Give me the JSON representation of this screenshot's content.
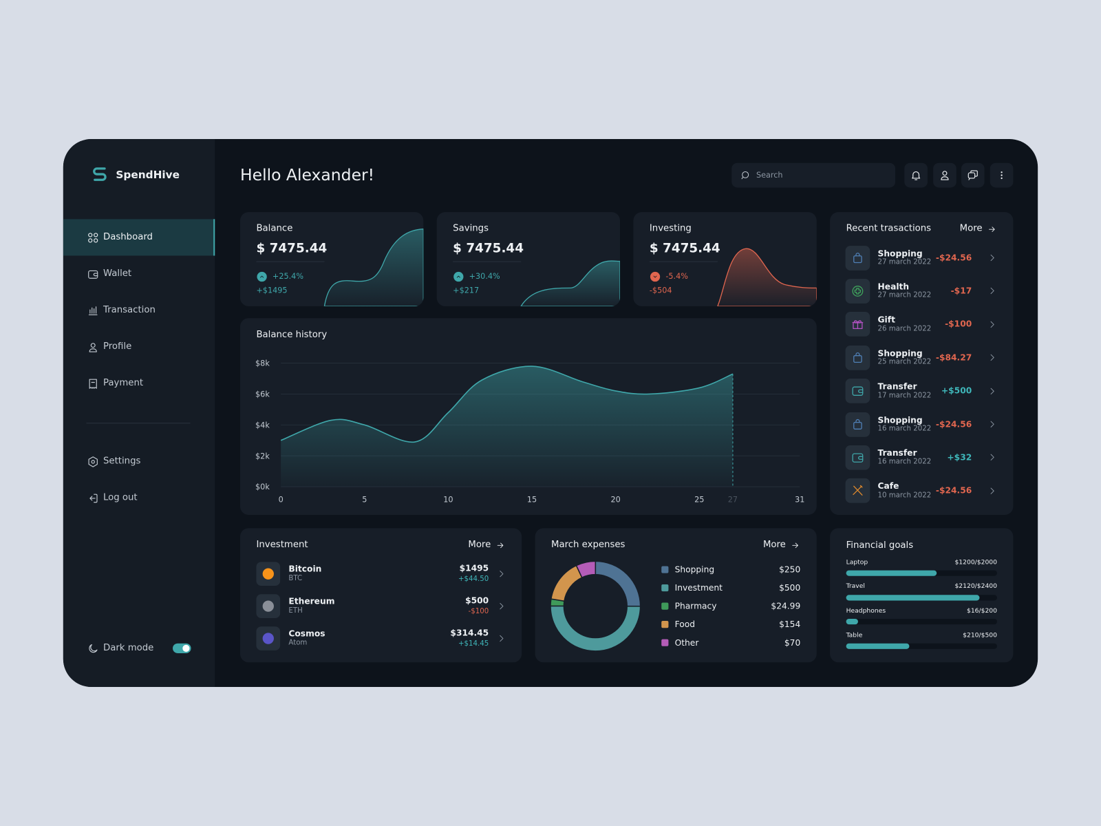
{
  "sidebar": {
    "brand": "SpendHive",
    "nav": [
      "Dashboard",
      "Wallet",
      "Transaction",
      "Profile",
      "Payment"
    ],
    "secondary_nav": [
      "Settings",
      "Log out"
    ],
    "dark_mode": {
      "label": "Dark mode",
      "on": true
    }
  },
  "header": {
    "greeting": "Hello Alexander!",
    "search_placeholder": "Search"
  },
  "summary_cards": [
    {
      "title": "Balance",
      "amount": "$ 7475.44",
      "change": "+25.4%",
      "delta": "+$1495",
      "color": "#3fa7aa"
    },
    {
      "title": "Savings",
      "amount": "$ 7475.44",
      "change": "+30.4%",
      "delta": "+$217",
      "color": "#3fa7aa"
    },
    {
      "title": "Investing",
      "amount": "$ 7475.44",
      "change": "-5.4%",
      "delta": "-$504",
      "color": "#e0664f"
    }
  ],
  "balance_history": {
    "title": "Balance history",
    "type": "area",
    "color": "#3fa7aa",
    "x": [
      0,
      3,
      5,
      8,
      10,
      12,
      15,
      18,
      20,
      22,
      25,
      27
    ],
    "values": [
      3000,
      4300,
      4000,
      2900,
      4800,
      6900,
      7800,
      6800,
      6200,
      6000,
      6400,
      7300
    ],
    "xlim": [
      0,
      31
    ],
    "xticks": [
      0,
      5,
      10,
      15,
      20,
      25,
      27,
      31
    ],
    "ylim": [
      0,
      8000
    ],
    "yticks": [
      {
        "value": 0,
        "label": "$0k"
      },
      {
        "value": 2000,
        "label": "$2k"
      },
      {
        "value": 4000,
        "label": "$4k"
      },
      {
        "value": 6000,
        "label": "$6k"
      },
      {
        "value": 8000,
        "label": "$8k"
      }
    ],
    "grid": true
  },
  "recent_transactions": {
    "title": "Recent trasactions",
    "more": "More",
    "items": [
      {
        "name": "Shopping",
        "date": "27 march 2022",
        "amount": "-$24.56",
        "amount_color": "#e0664f",
        "icon": "bag",
        "color": "#4f7fb5"
      },
      {
        "name": "Health",
        "date": "27 march 2022",
        "amount": "-$17",
        "amount_color": "#e0664f",
        "icon": "cross",
        "color": "#3fa35c"
      },
      {
        "name": "Gift",
        "date": "26 march 2022",
        "amount": "-$100",
        "amount_color": "#e0664f",
        "icon": "gift",
        "color": "#b452c4"
      },
      {
        "name": "Shopping",
        "date": "25 march 2022",
        "amount": "-$84.27",
        "amount_color": "#e0664f",
        "icon": "bag",
        "color": "#4f7fb5"
      },
      {
        "name": "Transfer",
        "date": "17 march 2022",
        "amount": "+$500",
        "amount_color": "#3fb6b9",
        "icon": "wallet",
        "color": "#3fa7aa"
      },
      {
        "name": "Shopping",
        "date": "16 march 2022",
        "amount": "-$24.56",
        "amount_color": "#e0664f",
        "icon": "bag",
        "color": "#4f7fb5"
      },
      {
        "name": "Transfer",
        "date": "16 march 2022",
        "amount": "+$32",
        "amount_color": "#3fb6b9",
        "icon": "wallet",
        "color": "#3fa7aa"
      },
      {
        "name": "Cafe",
        "date": "10 march 2022",
        "amount": "-$24.56",
        "amount_color": "#e0664f",
        "icon": "cutlery",
        "color": "#e08a2d"
      }
    ]
  },
  "investment": {
    "title": "Investment",
    "more": "More",
    "items": [
      {
        "name": "Bitcoin",
        "ticker": "BTC",
        "amount": "$1495",
        "change": "+$44.50",
        "change_color": "#3fb6b9",
        "icon_color": "#f7931a"
      },
      {
        "name": "Ethereum",
        "ticker": "ETH",
        "amount": "$500",
        "change": "-$100",
        "change_color": "#e0664f",
        "icon_color": "#8a8f98"
      },
      {
        "name": "Cosmos",
        "ticker": "Atom",
        "amount": "$314.45",
        "change": "+$14.45",
        "change_color": "#3fb6b9",
        "icon_color": "#5a55c8"
      }
    ]
  },
  "march_expenses": {
    "title": "March expenses",
    "more": "More",
    "type": "donut",
    "categories": [
      "Shopping",
      "Investment",
      "Pharmacy",
      "Food",
      "Other"
    ],
    "values": [
      250,
      500,
      24.99,
      154,
      70
    ],
    "value_labels": [
      "$250",
      "$500",
      "$24.99",
      "$154",
      "$70"
    ],
    "colors": [
      "#4f7394",
      "#4e9a9c",
      "#3f9a5a",
      "#d2954d",
      "#b45cb7"
    ]
  },
  "financial_goals": {
    "title": "Financial goals",
    "color": "#3fa7aa",
    "items": [
      {
        "label": "Laptop",
        "current": 1200,
        "target": 2000,
        "value_label": "$1200/$2000"
      },
      {
        "label": "Travel",
        "current": 2120,
        "target": 2400,
        "value_label": "$2120/$2400"
      },
      {
        "label": "Headphones",
        "current": 16,
        "target": 200,
        "value_label": "$16/$200"
      },
      {
        "label": "Table",
        "current": 210,
        "target": 500,
        "value_label": "$210/$500"
      }
    ]
  }
}
